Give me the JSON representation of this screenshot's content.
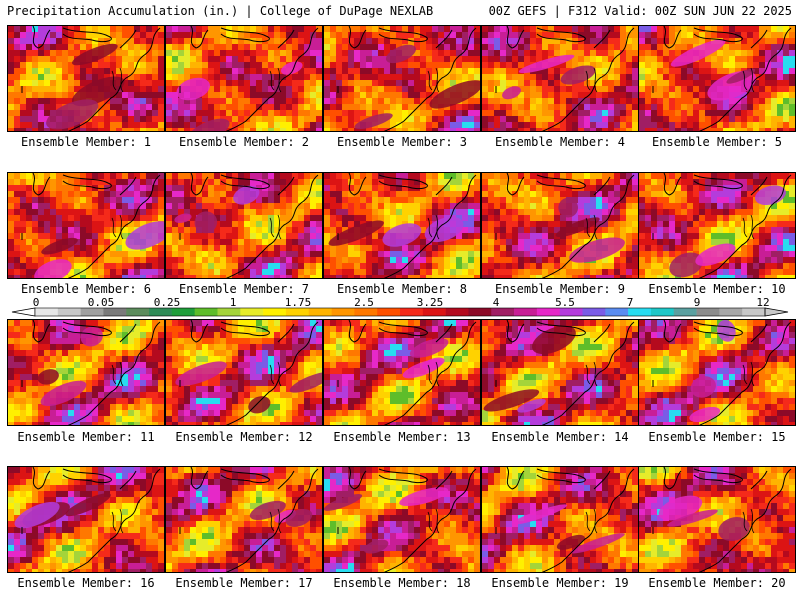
{
  "header": {
    "left": "Precipitation Accumulation (in.) | College of DuPage NEXLAB",
    "right": "00Z GEFS | F312 Valid: 00Z SUN JUN 22 2025"
  },
  "members": [
    "Ensemble Member: 1",
    "Ensemble Member: 2",
    "Ensemble Member: 3",
    "Ensemble Member: 4",
    "Ensemble Member: 5",
    "Ensemble Member: 6",
    "Ensemble Member: 7",
    "Ensemble Member: 8",
    "Ensemble Member: 9",
    "Ensemble Member: 10",
    "Ensemble Member: 11",
    "Ensemble Member: 12",
    "Ensemble Member: 13",
    "Ensemble Member: 14",
    "Ensemble Member: 15",
    "Ensemble Member: 16",
    "Ensemble Member: 17",
    "Ensemble Member: 18",
    "Ensemble Member: 19",
    "Ensemble Member: 20"
  ],
  "colorbar": {
    "labels": [
      "0",
      "0.05",
      "0.25",
      "1",
      "1.75",
      "2.5",
      "3.25",
      "4",
      "5.5",
      "7",
      "9",
      "12"
    ],
    "colors": [
      "#e6e6e6",
      "#c8c8c8",
      "#a0a0a0",
      "#7a7a7a",
      "#5c8c5c",
      "#2e8b57",
      "#1f9e3a",
      "#5ebd2a",
      "#a4d43a",
      "#e6ec2a",
      "#fff000",
      "#ffd200",
      "#ffb400",
      "#ff9600",
      "#ff7800",
      "#ff5000",
      "#f52a1a",
      "#dc1414",
      "#b40a1e",
      "#8c0a28",
      "#a01e64",
      "#c81e96",
      "#e628c8",
      "#b43cdc",
      "#7a5ce6",
      "#5a8cf0",
      "#28dcf0",
      "#1ec8c8",
      "#5aa0a0",
      "#8c8c8c",
      "#a8a8a8",
      "#c8c8c8"
    ],
    "field_palette": [
      "#5ebd2a",
      "#a4d43a",
      "#e6ec2a",
      "#fff000",
      "#ffd200",
      "#ffb400",
      "#ff9600",
      "#ff7800",
      "#ff5000",
      "#f52a1a",
      "#dc1414",
      "#b40a1e",
      "#8c0a28",
      "#a01e64",
      "#c81e96",
      "#e628c8",
      "#b43cdc",
      "#7a5ce6",
      "#28dcf0"
    ]
  }
}
